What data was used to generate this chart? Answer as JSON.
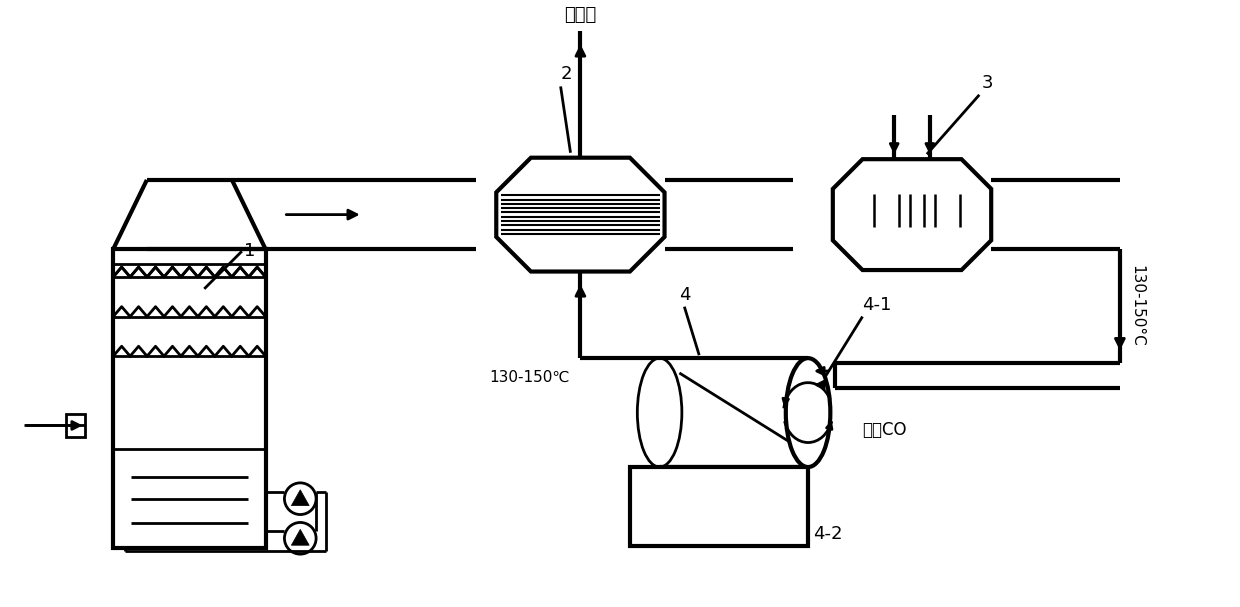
{
  "bg_color": "#ffffff",
  "lc": "#000000",
  "lw": 2.0,
  "lwt": 3.0,
  "labels": {
    "chimney": "去烟囱",
    "label1": "1",
    "label2": "2",
    "label3": "3",
    "label4": "4",
    "label4_1": "4-1",
    "label4_2": "4-2",
    "temp_left": "130-150℃",
    "temp_right": "130-150°C",
    "buchong": "补充CO"
  }
}
